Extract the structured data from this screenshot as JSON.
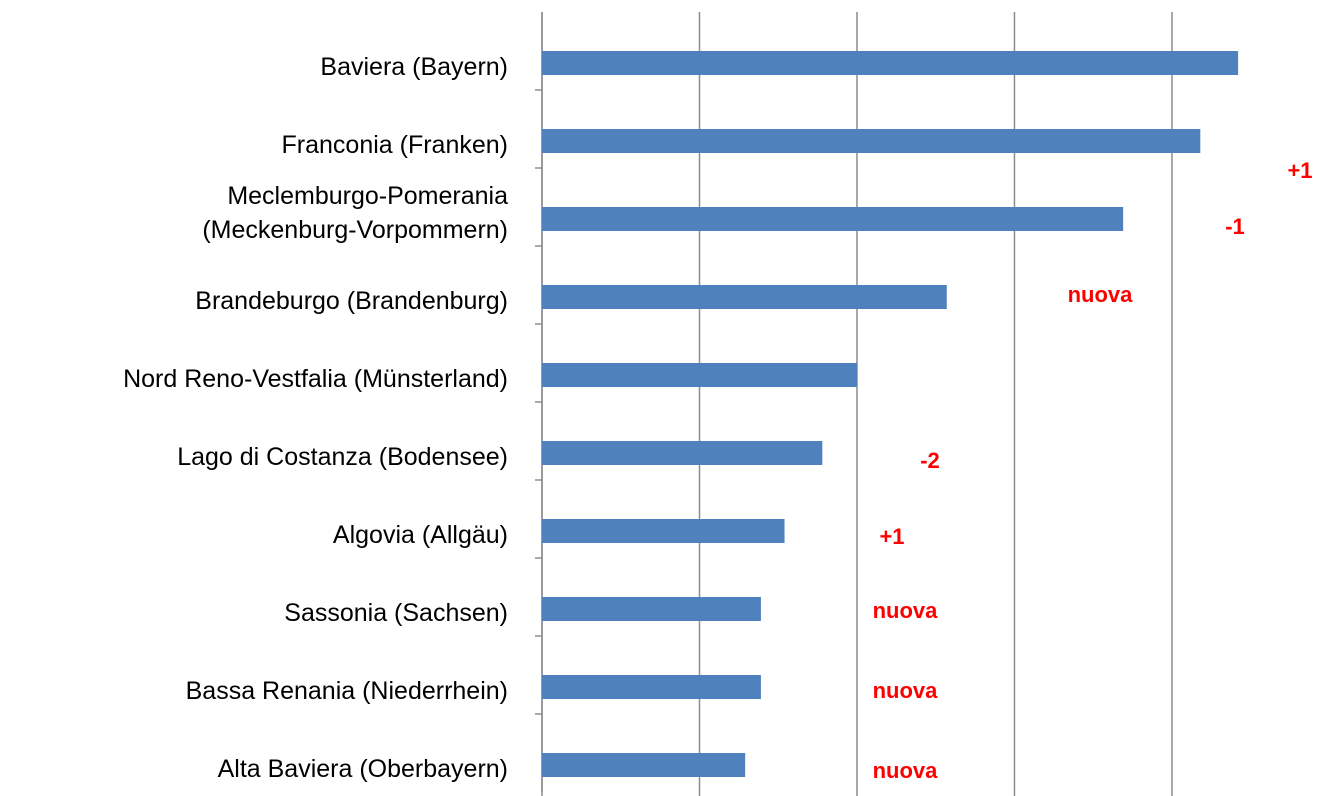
{
  "chart_data": {
    "type": "hbar",
    "categories": [
      "Baviera (Bayern)",
      "Franconia (Franken)",
      "Meclemburgo-Pomerania\n(Meckenburg-Vorpommern)",
      "Brandeburgo (Brandenburg)",
      "Nord Reno-Vestfalia (Münsterland)",
      "Lago di Costanza (Bodensee)",
      "Algovia (Allgäu)",
      "Sassonia (Sachsen)",
      "Bassa Renania (Niederrhein)",
      "Alta Baviera (Oberbayern)"
    ],
    "values": [
      4.42,
      4.18,
      3.69,
      2.57,
      2.0,
      1.78,
      1.54,
      1.39,
      1.39,
      1.29
    ],
    "rank_change": [
      null,
      "+1",
      "-1",
      "nuova",
      null,
      "-2",
      "+1",
      "nuova",
      "nuova",
      "nuova"
    ],
    "color": "#4f81bd",
    "xlim": [
      0,
      4.94
    ],
    "xticks": [
      0,
      1,
      2,
      3,
      4
    ],
    "grid": true
  }
}
